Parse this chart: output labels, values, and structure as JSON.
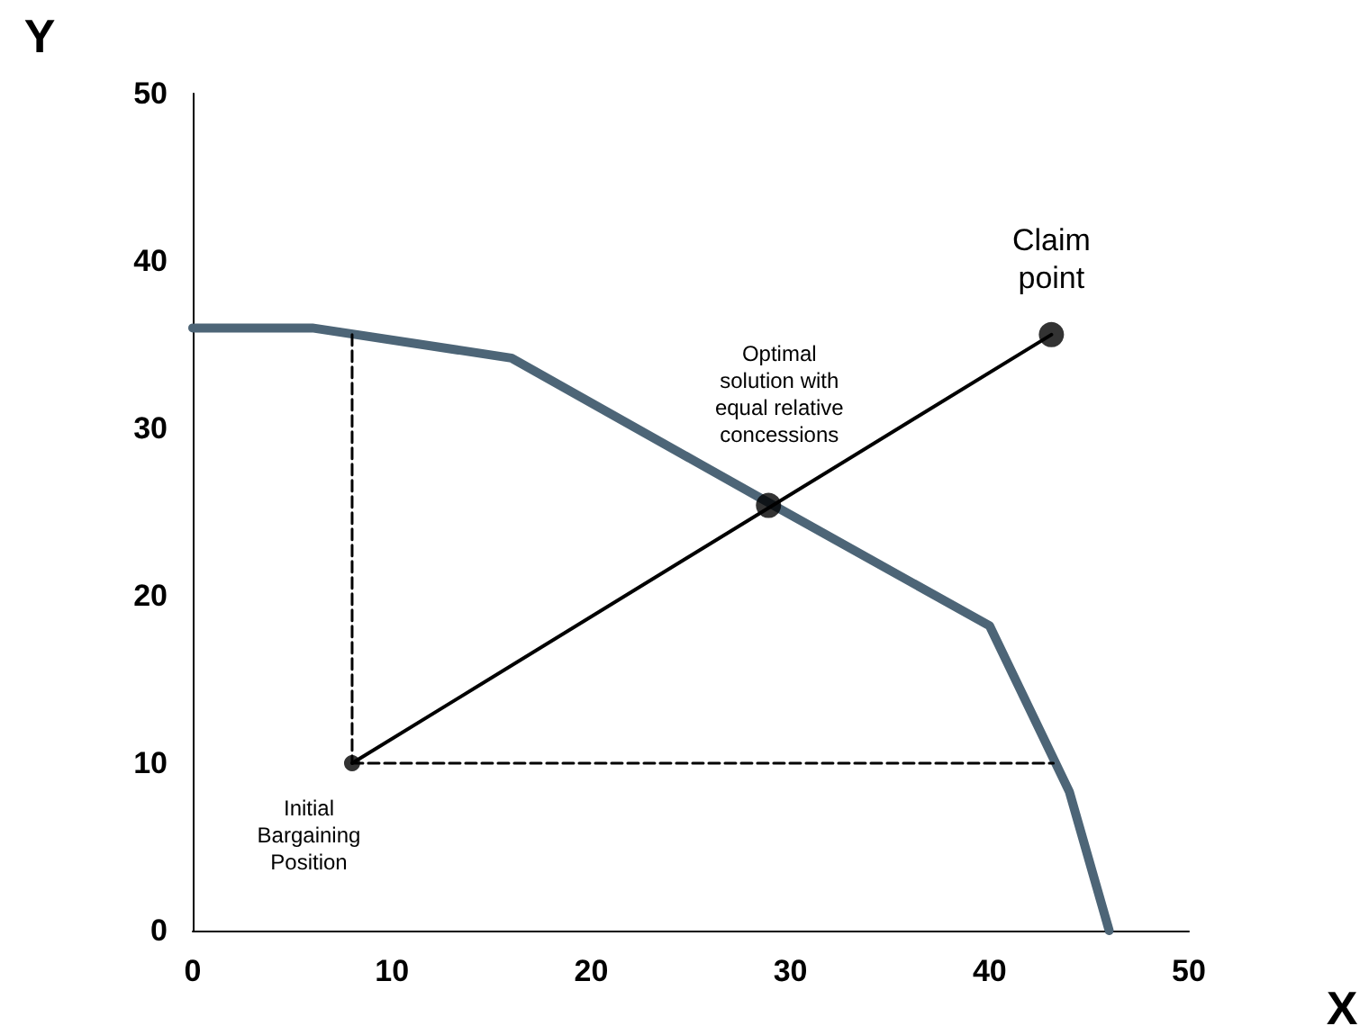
{
  "chart_data": {
    "type": "line",
    "xlabel": "X",
    "ylabel": "Y",
    "xlim": [
      0,
      50
    ],
    "xticks": [
      0,
      10,
      20,
      30,
      40,
      50
    ],
    "ylim": [
      0,
      50
    ],
    "yticks": [
      0,
      10,
      20,
      30,
      40,
      50
    ],
    "grid": false,
    "series": [
      {
        "color": "#4d6577",
        "x": [
          0,
          6,
          16,
          29,
          40,
          44,
          46
        ],
        "values": [
          36,
          36,
          34.2,
          25.5,
          18.2,
          8.3,
          0
        ]
      },
      {
        "color": "#000000",
        "line_style": "dashed",
        "x": [
          8,
          8
        ],
        "values": [
          35.6,
          10
        ]
      },
      {
        "color": "#000000",
        "line_style": "dashed",
        "x": [
          8,
          43.2
        ],
        "values": [
          10,
          10
        ]
      },
      {
        "color": "#000000",
        "x": [
          8,
          43.1
        ],
        "values": [
          10,
          35.6
        ]
      },
      {
        "type": "scatter",
        "color": "#000000",
        "marker": "circle",
        "x": [
          8
        ],
        "values": [
          10
        ]
      },
      {
        "type": "scatter",
        "color": "#000000",
        "marker": "circle",
        "x": [
          28.9,
          43.1
        ],
        "values": [
          25.4,
          35.6
        ]
      }
    ],
    "annotations": [
      {
        "text": "Claim\npoint",
        "x": 43.1,
        "y": 35.6
      },
      {
        "text": "Optimal\nsolution with\nequal relative\nconcessions",
        "x": 28.9,
        "y": 25.4
      },
      {
        "text": "Initial\nBargaining\nPosition",
        "x": 8,
        "y": 10
      }
    ]
  }
}
